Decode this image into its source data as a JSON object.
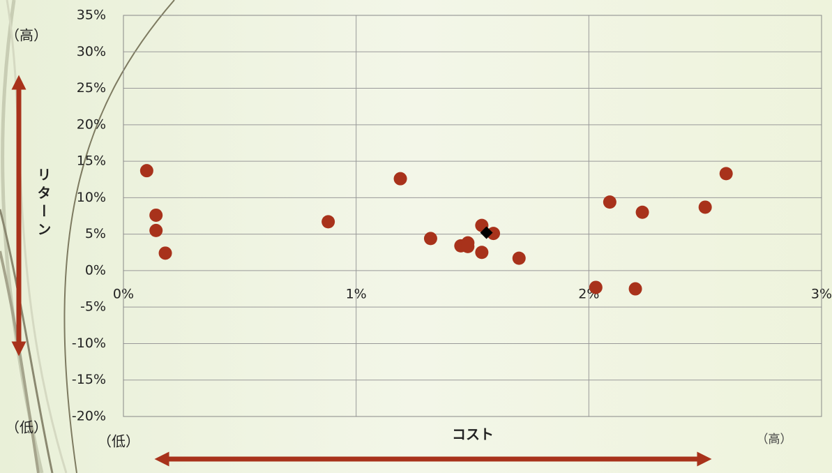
{
  "chart_data": {
    "type": "scatter",
    "y_high_label": "（高）",
    "y_low_label": "（低）",
    "y_label": "リターン",
    "x_low_label": "（低）",
    "x_label": "コスト",
    "x_high_label": "（高）",
    "xlim": [
      0,
      3
    ],
    "ylim": [
      -20,
      35
    ],
    "xticks": [
      {
        "value": 0,
        "label": "0%"
      },
      {
        "value": 1,
        "label": "1%"
      },
      {
        "value": 2,
        "label": "2%"
      },
      {
        "value": 3,
        "label": "3%"
      }
    ],
    "yticks": [
      {
        "value": 35,
        "label": "35%"
      },
      {
        "value": 30,
        "label": "30%"
      },
      {
        "value": 25,
        "label": "25%"
      },
      {
        "value": 20,
        "label": "20%"
      },
      {
        "value": 15,
        "label": "15%"
      },
      {
        "value": 10,
        "label": "10%"
      },
      {
        "value": 5,
        "label": "5%"
      },
      {
        "value": 0,
        "label": "0%"
      },
      {
        "value": -5,
        "label": "-5%"
      },
      {
        "value": -10,
        "label": "-10%"
      },
      {
        "value": -15,
        "label": "-15%"
      },
      {
        "value": -20,
        "label": "-20%"
      }
    ],
    "grid": true,
    "series": [
      {
        "color": "#a8321b",
        "marker": "circle",
        "x": [
          0.1,
          0.14,
          0.14,
          0.18,
          0.88,
          1.19,
          1.32,
          1.45,
          1.48,
          1.48,
          1.54,
          1.54,
          1.59,
          1.7,
          2.03,
          2.09,
          2.2,
          2.23,
          2.5,
          2.59
        ],
        "values": [
          13.7,
          7.6,
          5.5,
          2.4,
          6.7,
          12.6,
          4.4,
          3.4,
          3.8,
          3.3,
          6.2,
          2.5,
          5.1,
          1.7,
          -2.3,
          9.4,
          -2.5,
          8.0,
          8.7,
          13.3
        ]
      },
      {
        "color": "#000000",
        "marker": "diamond",
        "x": [
          1.56
        ],
        "values": [
          5.2
        ]
      }
    ]
  }
}
